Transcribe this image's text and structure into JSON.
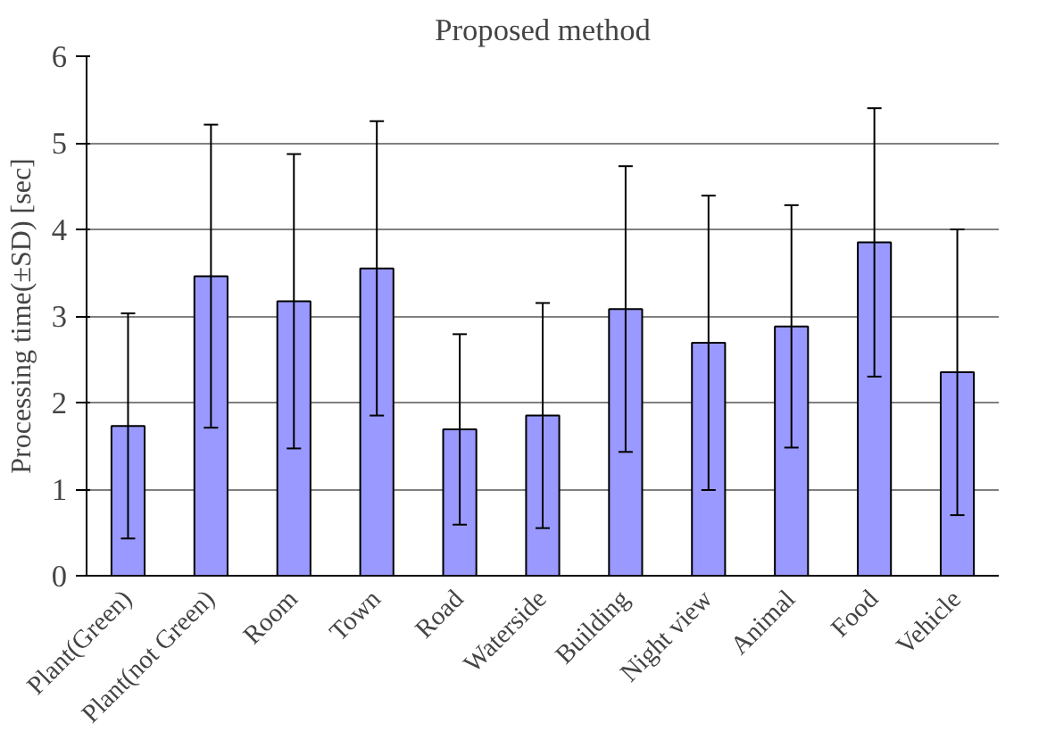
{
  "chart_data": {
    "type": "bar",
    "title": "Proposed method",
    "ylabel": "Processing time(±SD) [sec]",
    "categories": [
      "Plant(Green)",
      "Plant(not Green)",
      "Room",
      "Town",
      "Road",
      "Waterside",
      "Building",
      "Night view",
      "Animal",
      "Food",
      "Vehicle"
    ],
    "values": [
      1.73,
      3.46,
      3.17,
      3.55,
      1.69,
      1.85,
      3.08,
      2.69,
      2.88,
      3.85,
      2.35
    ],
    "errors": [
      1.3,
      1.75,
      1.7,
      1.7,
      1.1,
      1.3,
      1.65,
      1.7,
      1.4,
      1.55,
      1.65
    ],
    "color": "#9999ff",
    "ylim": [
      0,
      6
    ],
    "yticks": [
      0,
      1,
      2,
      3,
      4,
      5,
      6
    ],
    "grid": "y"
  }
}
